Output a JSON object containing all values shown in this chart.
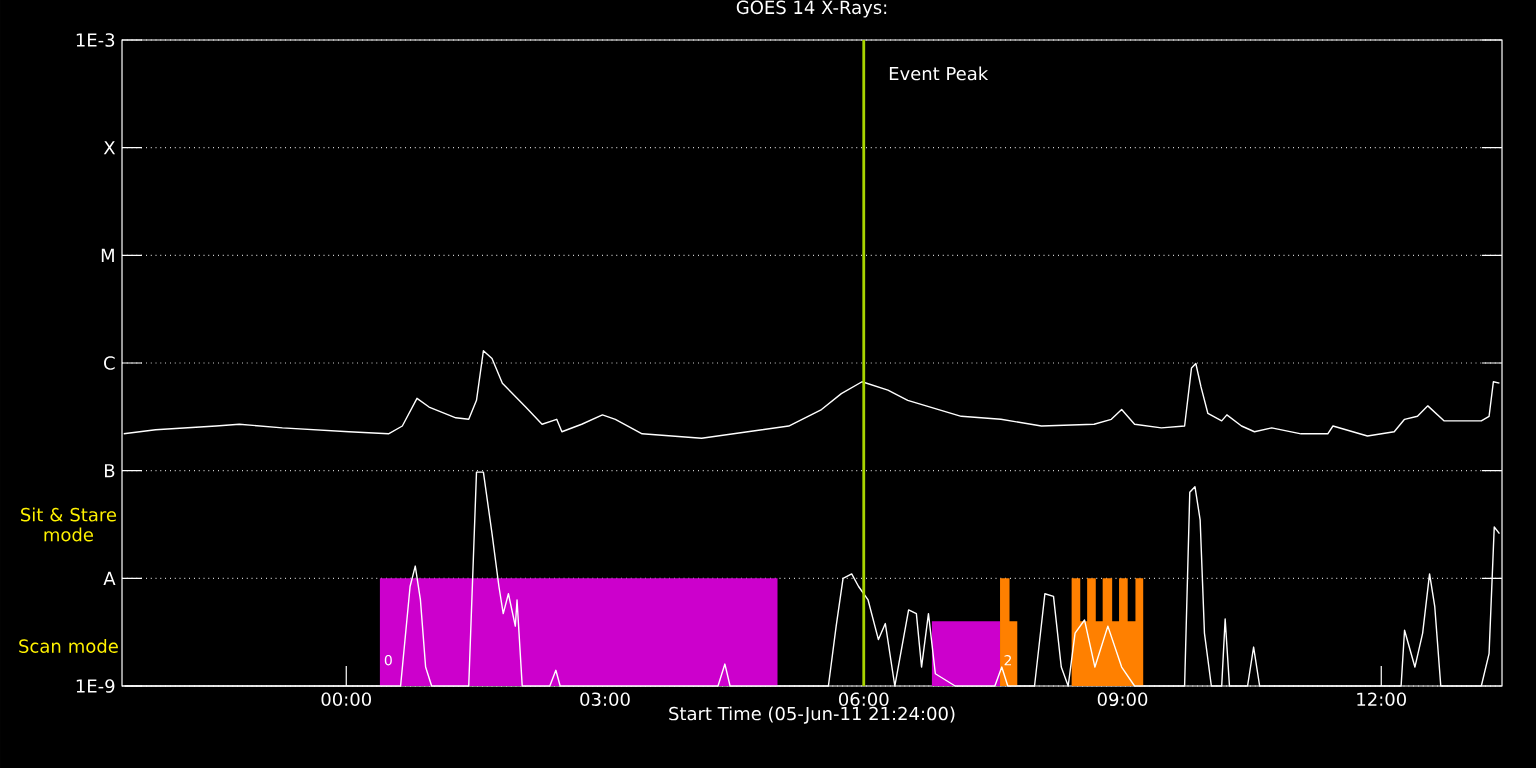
{
  "chart_data": {
    "type": "line",
    "title": "GOES 14 X-Rays:",
    "xlabel": "Start Time (05-Jun-11 21:24:00)",
    "log": "y",
    "grid": "y",
    "marker": "none",
    "line_style": "solid",
    "xlim": [
      -2.6,
      13.4
    ],
    "ylim": [
      1e-09,
      0.001
    ],
    "xticks": [
      {
        "value": 0,
        "label": "00:00"
      },
      {
        "value": 3,
        "label": "03:00"
      },
      {
        "value": 6,
        "label": "06:00"
      },
      {
        "value": 9,
        "label": "09:00"
      },
      {
        "value": 12,
        "label": "12:00"
      }
    ],
    "yticks": [
      {
        "value": 1e-09,
        "label": "1E-9"
      },
      {
        "value": 1e-08,
        "label": "A"
      },
      {
        "value": 1e-07,
        "label": "B"
      },
      {
        "value": 1e-06,
        "label": "C"
      },
      {
        "value": 1e-05,
        "label": "M"
      },
      {
        "value": 0.0001,
        "label": "X"
      },
      {
        "value": 0.001,
        "label": "1E-3"
      }
    ],
    "ref_lines": [
      {
        "axis": "x",
        "value": 6.0,
        "label": "Event Peak",
        "color": "#a8d400"
      }
    ],
    "annotations": [
      "Sit & Stare mode",
      "Scan mode",
      "0",
      "2"
    ],
    "series": [
      {
        "type": "area",
        "color": "#cc00cc",
        "x": [
          0.39,
          5.0
        ],
        "values": [
          1e-08,
          1e-08
        ]
      },
      {
        "type": "area",
        "color": "#cc00cc",
        "x": [
          6.79,
          7.58
        ],
        "values": [
          4e-09,
          4e-09
        ]
      },
      {
        "type": "area",
        "color": "#ff8000",
        "x": [
          7.58,
          7.69,
          7.69,
          7.78
        ],
        "values": [
          1e-08,
          1e-08,
          4e-09,
          4e-09
        ]
      },
      {
        "type": "area",
        "color": "#ff8000",
        "x": [
          8.41,
          8.51,
          8.51,
          8.59,
          8.59,
          8.69,
          8.69,
          8.77,
          8.77,
          8.88,
          8.88,
          8.96,
          8.96,
          9.06,
          9.06,
          9.15,
          9.15,
          9.24
        ],
        "values": [
          1e-08,
          1e-08,
          4e-09,
          4e-09,
          1e-08,
          1e-08,
          4e-09,
          4e-09,
          1e-08,
          1e-08,
          4e-09,
          4e-09,
          1e-08,
          1e-08,
          4e-09,
          4e-09,
          1e-08,
          1e-08
        ]
      },
      {
        "color": "#ffffff",
        "x": [
          -2.58,
          -2.21,
          -1.51,
          -1.24,
          -0.74,
          0.03,
          0.49,
          0.65,
          0.82,
          0.96,
          1.27,
          1.42,
          1.51,
          1.59,
          1.69,
          1.81,
          2.08,
          2.27,
          2.44,
          2.5,
          2.73,
          2.97,
          3.12,
          3.43,
          4.12,
          4.82,
          5.13,
          5.51,
          5.74,
          5.98,
          6.28,
          6.51,
          7.13,
          7.59,
          8.06,
          8.67,
          8.87,
          8.99,
          9.14,
          9.45,
          9.72,
          9.8,
          9.85,
          9.91,
          9.99,
          10.15,
          10.21,
          10.38,
          10.53,
          10.73,
          11.07,
          11.38,
          11.44,
          11.84,
          12.15,
          12.27,
          12.42,
          12.54,
          12.73,
          13.16,
          13.25,
          13.3,
          13.37
        ],
        "values": [
          2.2e-07,
          2.4e-07,
          2.6e-07,
          2.7e-07,
          2.5e-07,
          2.3e-07,
          2.2e-07,
          2.6e-07,
          4.7e-07,
          3.9e-07,
          3.1e-07,
          3e-07,
          4.5e-07,
          1.3e-06,
          1.1e-06,
          6.5e-07,
          3.9e-07,
          2.7e-07,
          3e-07,
          2.3e-07,
          2.7e-07,
          3.3e-07,
          3e-07,
          2.2e-07,
          2e-07,
          2.4e-07,
          2.6e-07,
          3.7e-07,
          5.2e-07,
          6.7e-07,
          5.6e-07,
          4.5e-07,
          3.2e-07,
          3e-07,
          2.6e-07,
          2.7e-07,
          3e-07,
          3.7e-07,
          2.7e-07,
          2.5e-07,
          2.6e-07,
          9e-07,
          9.9e-07,
          6e-07,
          3.4e-07,
          2.9e-07,
          3.3e-07,
          2.6e-07,
          2.3e-07,
          2.5e-07,
          2.2e-07,
          2.2e-07,
          2.6e-07,
          2.1e-07,
          2.3e-07,
          3e-07,
          3.2e-07,
          4e-07,
          2.9e-07,
          2.9e-07,
          3.2e-07,
          6.7e-07,
          6.5e-07
        ]
      },
      {
        "color": "#ffffff",
        "x": [
          -2.57,
          -0.51,
          0.63,
          0.74,
          0.8,
          0.86,
          0.92,
          0.99,
          1.42,
          1.51,
          1.59,
          1.69,
          1.77,
          1.82,
          1.88,
          1.96,
          1.98,
          2.04,
          2.36,
          2.43,
          2.48,
          4.31,
          4.39,
          4.45,
          5.59,
          5.68,
          5.76,
          5.86,
          5.94,
          6.05,
          6.17,
          6.25,
          6.36,
          6.52,
          6.61,
          6.67,
          6.75,
          6.83,
          7.06,
          7.52,
          7.6,
          7.67,
          7.98,
          8.1,
          8.2,
          8.29,
          8.37,
          8.45,
          8.56,
          8.68,
          8.83,
          8.99,
          9.14,
          9.72,
          9.78,
          9.84,
          9.9,
          9.95,
          10.03,
          10.15,
          10.19,
          10.24,
          10.45,
          10.52,
          10.59,
          12.23,
          12.27,
          12.39,
          12.48,
          12.56,
          12.62,
          12.69,
          13.16,
          13.25,
          13.31,
          13.37
        ],
        "values": [
          1e-09,
          1e-09,
          1e-09,
          8.4e-09,
          1.3e-08,
          6.3e-09,
          1.5e-09,
          1e-09,
          1e-09,
          9.7e-08,
          9.7e-08,
          2.6e-08,
          8.4e-09,
          4.7e-09,
          7.2e-09,
          3.6e-09,
          6.3e-09,
          1e-09,
          1e-09,
          1.4e-09,
          1e-09,
          1e-09,
          1.6e-09,
          1e-09,
          1e-09,
          3.6e-09,
          1e-08,
          1.1e-08,
          8.4e-09,
          6.3e-09,
          2.7e-09,
          3.8e-09,
          1e-09,
          5.1e-09,
          4.7e-09,
          1.5e-09,
          4.7e-09,
          1.3e-09,
          1e-09,
          1e-09,
          1.5e-09,
          1e-09,
          1e-09,
          7.2e-09,
          6.8e-09,
          1.5e-09,
          1e-09,
          3.1e-09,
          4.1e-09,
          1.5e-09,
          3.6e-09,
          1.5e-09,
          1e-09,
          1e-09,
          6.3e-08,
          7.1e-08,
          3.5e-08,
          3.1e-09,
          1e-09,
          1e-09,
          4.2e-09,
          1e-09,
          1e-09,
          2.3e-09,
          1e-09,
          1e-09,
          3.3e-09,
          1.5e-09,
          3.1e-09,
          1.1e-08,
          5.5e-09,
          1e-09,
          1e-09,
          2e-09,
          3e-08,
          2.6e-08
        ]
      }
    ]
  }
}
